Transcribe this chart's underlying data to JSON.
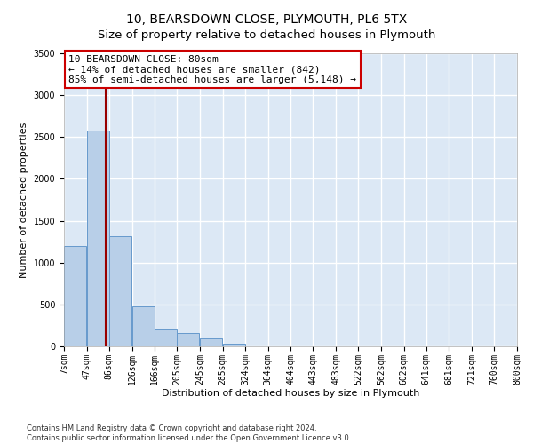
{
  "title1": "10, BEARSDOWN CLOSE, PLYMOUTH, PL6 5TX",
  "title2": "Size of property relative to detached houses in Plymouth",
  "xlabel": "Distribution of detached houses by size in Plymouth",
  "ylabel": "Number of detached properties",
  "annotation_line1": "10 BEARSDOWN CLOSE: 80sqm",
  "annotation_line2": "← 14% of detached houses are smaller (842)",
  "annotation_line3": "85% of semi-detached houses are larger (5,148) →",
  "footer1": "Contains HM Land Registry data © Crown copyright and database right 2024.",
  "footer2": "Contains public sector information licensed under the Open Government Licence v3.0.",
  "bar_left_edges": [
    7,
    47,
    86,
    126,
    166,
    205,
    245,
    285,
    324,
    364,
    404,
    443,
    483,
    522,
    562,
    602,
    641,
    681,
    721,
    760
  ],
  "bar_heights": [
    1200,
    2580,
    1310,
    480,
    200,
    155,
    100,
    30,
    5,
    5,
    5,
    5,
    5,
    5,
    5,
    5,
    5,
    5,
    5,
    5
  ],
  "bar_color": "#b8cfe8",
  "bar_edge_color": "#6699cc",
  "vline_x": 80,
  "vline_color": "#990000",
  "bg_color": "#dce8f5",
  "grid_color": "#ffffff",
  "ylim": [
    0,
    3500
  ],
  "yticks": [
    0,
    500,
    1000,
    1500,
    2000,
    2500,
    3000,
    3500
  ],
  "xtick_labels": [
    "7sqm",
    "47sqm",
    "86sqm",
    "126sqm",
    "166sqm",
    "205sqm",
    "245sqm",
    "285sqm",
    "324sqm",
    "364sqm",
    "404sqm",
    "443sqm",
    "483sqm",
    "522sqm",
    "562sqm",
    "602sqm",
    "641sqm",
    "681sqm",
    "721sqm",
    "760sqm",
    "800sqm"
  ],
  "annotation_box_color": "#cc0000",
  "title_fontsize": 10,
  "subtitle_fontsize": 9.5,
  "axis_label_fontsize": 8,
  "tick_fontsize": 7,
  "annotation_fontsize": 8,
  "ylabel_fontsize": 8
}
